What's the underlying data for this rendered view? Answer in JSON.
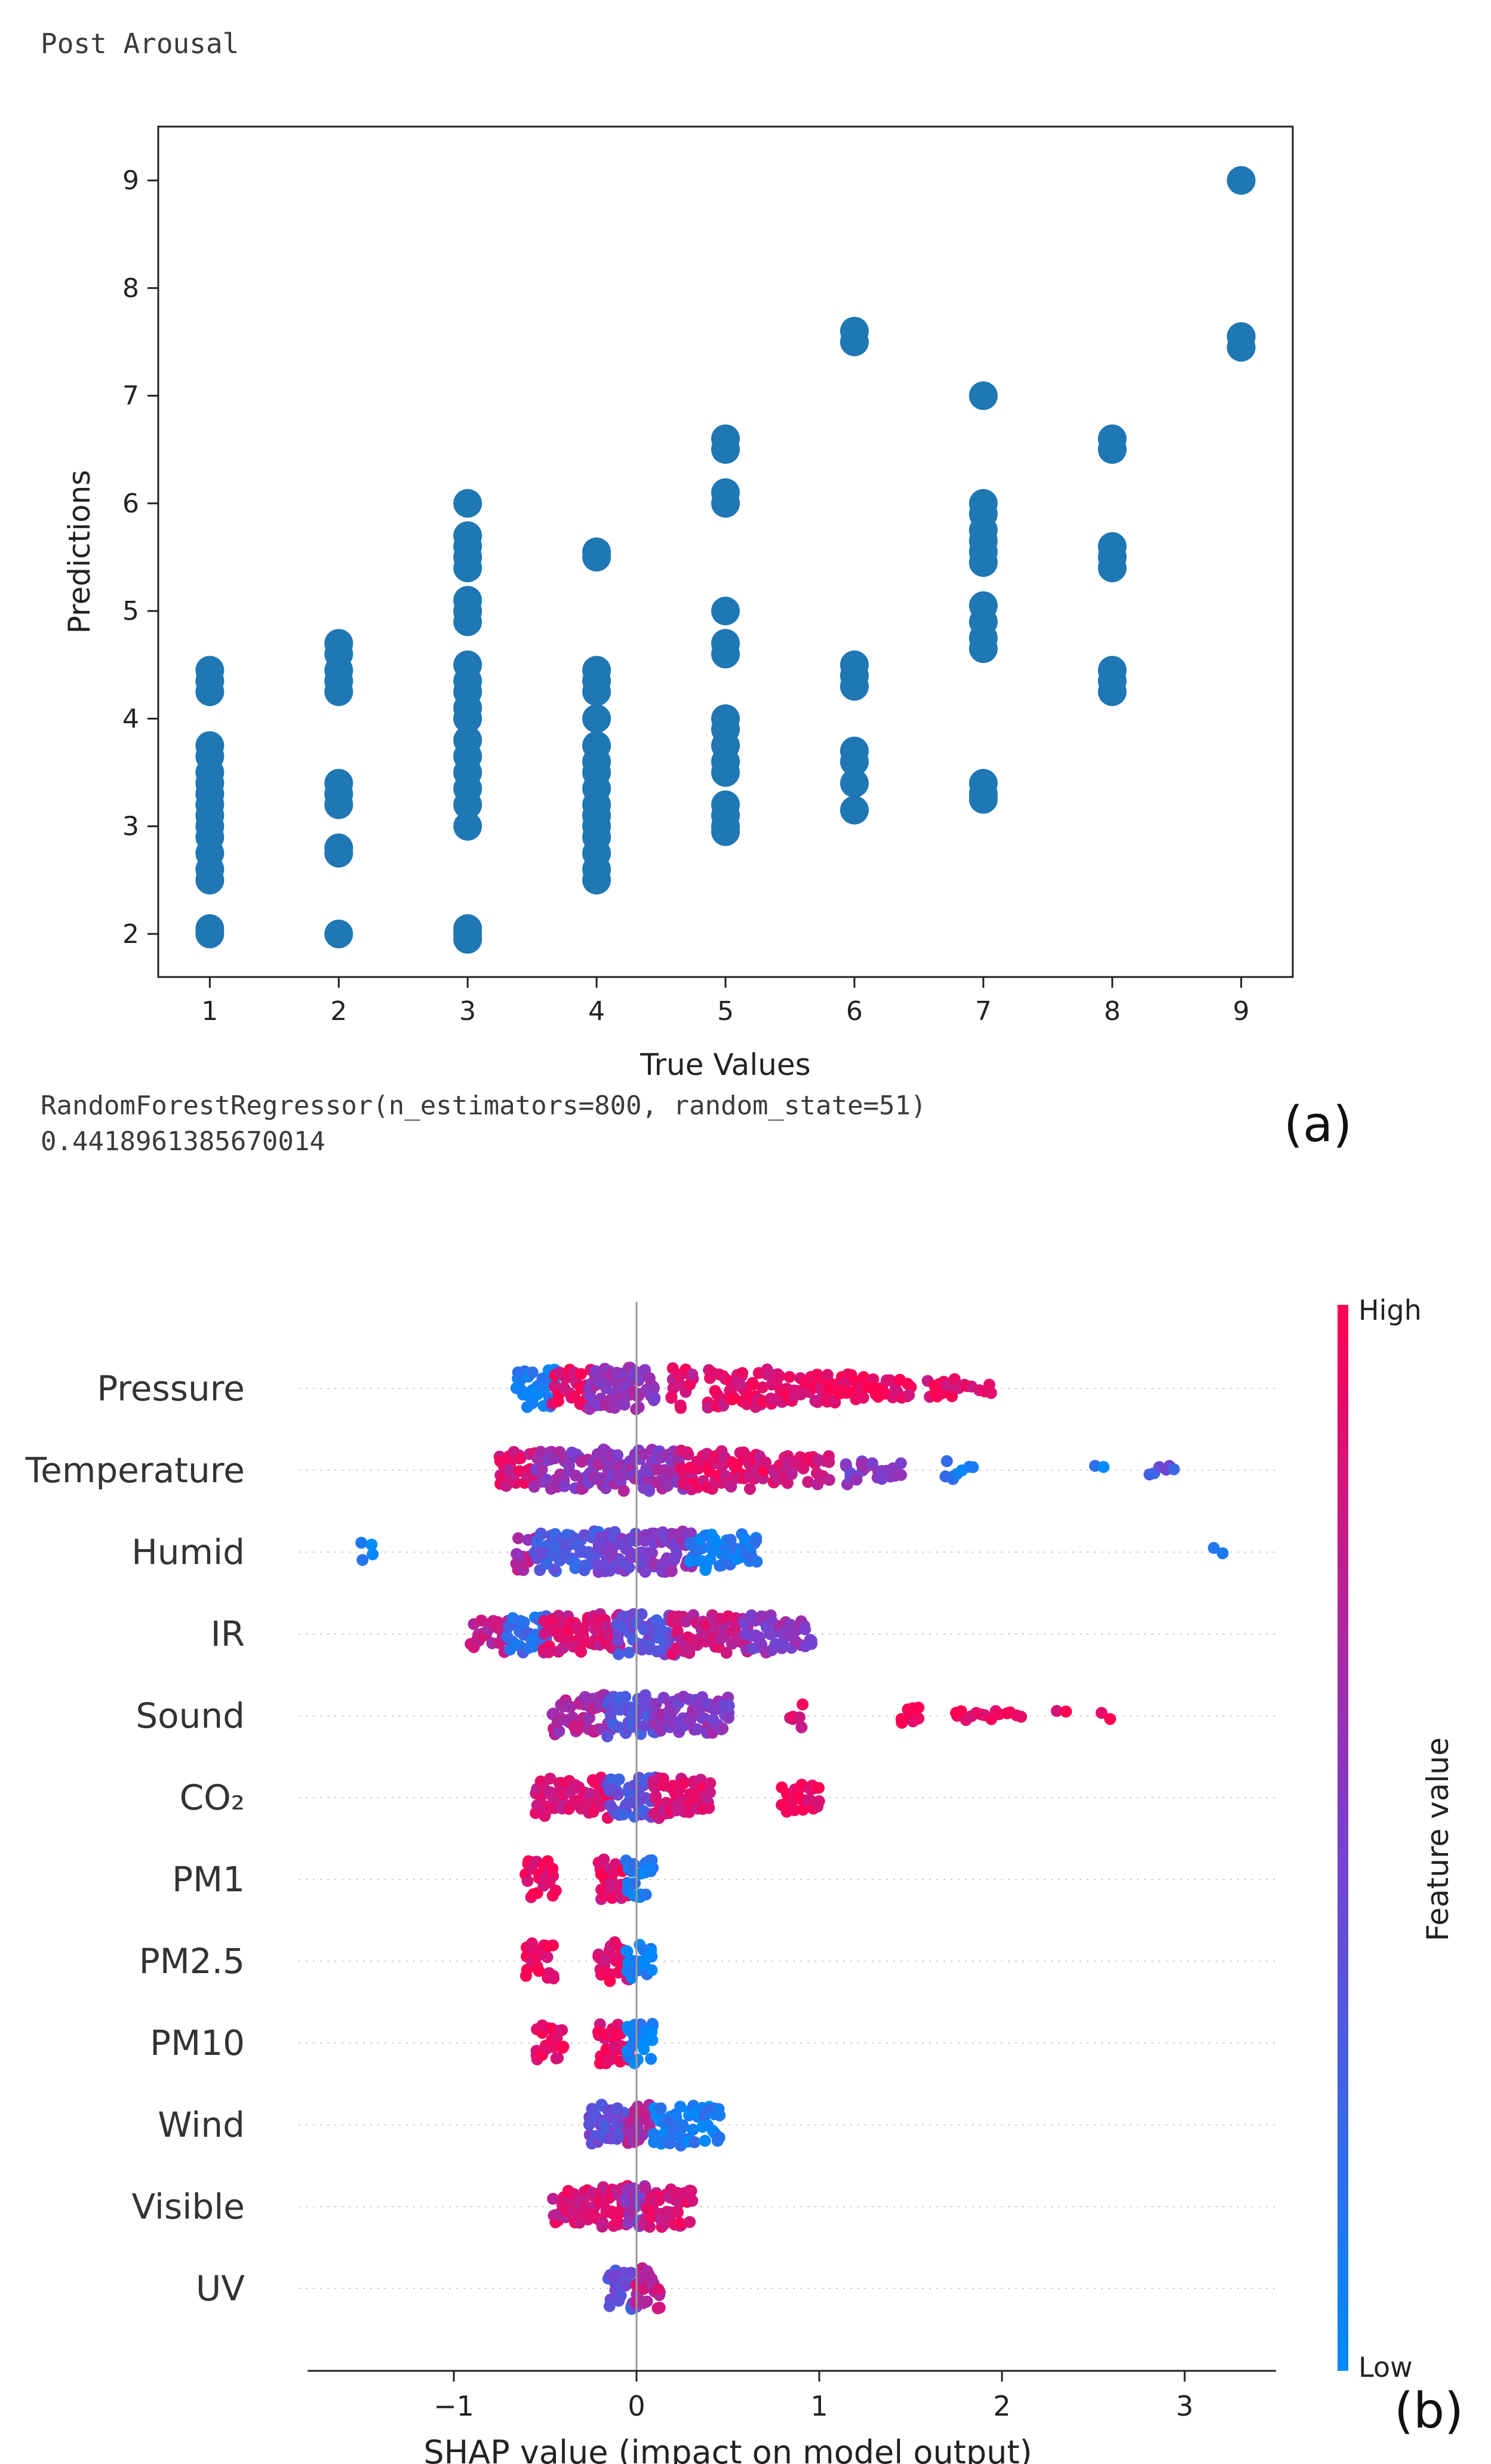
{
  "header": {
    "label": "Post Arousal"
  },
  "output": {
    "model": "RandomForestRegressor(n_estimators=800, random_state=51)",
    "score": "0.4418961385670014"
  },
  "panels": {
    "a": "(a)",
    "b": "(b)"
  },
  "colors": {
    "scatter": "#1f77b4",
    "shap_low": "#008bfb",
    "shap_high": "#ff0052"
  },
  "chart_data": [
    {
      "type": "scatter",
      "title": "",
      "xlabel": "True Values",
      "ylabel": "Predictions",
      "xlim": [
        0.6,
        9.4
      ],
      "ylim": [
        1.6,
        9.5
      ],
      "xticks": [
        1,
        2,
        3,
        4,
        5,
        6,
        7,
        8,
        9
      ],
      "yticks": [
        2,
        3,
        4,
        5,
        6,
        7,
        8,
        9
      ],
      "grid": false,
      "series": [
        {
          "points": [
            [
              1,
              2.0
            ],
            [
              1,
              2.05
            ],
            [
              1,
              2.5
            ],
            [
              1,
              2.6
            ],
            [
              1,
              2.75
            ],
            [
              1,
              2.9
            ],
            [
              1,
              3.0
            ],
            [
              1,
              3.1
            ],
            [
              1,
              3.2
            ],
            [
              1,
              3.3
            ],
            [
              1,
              3.4
            ],
            [
              1,
              3.5
            ],
            [
              1,
              3.65
            ],
            [
              1,
              3.75
            ],
            [
              1,
              4.25
            ],
            [
              1,
              4.35
            ],
            [
              1,
              4.45
            ],
            [
              2,
              2.0
            ],
            [
              2,
              2.75
            ],
            [
              2,
              2.8
            ],
            [
              2,
              3.2
            ],
            [
              2,
              3.3
            ],
            [
              2,
              3.4
            ],
            [
              2,
              4.25
            ],
            [
              2,
              4.35
            ],
            [
              2,
              4.45
            ],
            [
              2,
              4.6
            ],
            [
              2,
              4.7
            ],
            [
              3,
              1.95
            ],
            [
              3,
              2.0
            ],
            [
              3,
              2.05
            ],
            [
              3,
              3.0
            ],
            [
              3,
              3.2
            ],
            [
              3,
              3.35
            ],
            [
              3,
              3.5
            ],
            [
              3,
              3.65
            ],
            [
              3,
              3.8
            ],
            [
              3,
              4.0
            ],
            [
              3,
              4.1
            ],
            [
              3,
              4.25
            ],
            [
              3,
              4.35
            ],
            [
              3,
              4.5
            ],
            [
              3,
              4.9
            ],
            [
              3,
              5.0
            ],
            [
              3,
              5.1
            ],
            [
              3,
              5.4
            ],
            [
              3,
              5.5
            ],
            [
              3,
              5.6
            ],
            [
              3,
              5.7
            ],
            [
              3,
              6.0
            ],
            [
              4,
              2.5
            ],
            [
              4,
              2.6
            ],
            [
              4,
              2.75
            ],
            [
              4,
              2.9
            ],
            [
              4,
              3.0
            ],
            [
              4,
              3.1
            ],
            [
              4,
              3.2
            ],
            [
              4,
              3.35
            ],
            [
              4,
              3.5
            ],
            [
              4,
              3.6
            ],
            [
              4,
              3.75
            ],
            [
              4,
              4.0
            ],
            [
              4,
              4.25
            ],
            [
              4,
              4.35
            ],
            [
              4,
              4.45
            ],
            [
              4,
              5.5
            ],
            [
              4,
              5.55
            ],
            [
              5,
              2.95
            ],
            [
              5,
              3.0
            ],
            [
              5,
              3.1
            ],
            [
              5,
              3.2
            ],
            [
              5,
              3.5
            ],
            [
              5,
              3.6
            ],
            [
              5,
              3.75
            ],
            [
              5,
              3.9
            ],
            [
              5,
              4.0
            ],
            [
              5,
              4.6
            ],
            [
              5,
              4.7
            ],
            [
              5,
              5.0
            ],
            [
              5,
              6.0
            ],
            [
              5,
              6.1
            ],
            [
              5,
              6.5
            ],
            [
              5,
              6.6
            ],
            [
              6,
              3.15
            ],
            [
              6,
              3.4
            ],
            [
              6,
              3.6
            ],
            [
              6,
              3.7
            ],
            [
              6,
              4.3
            ],
            [
              6,
              4.4
            ],
            [
              6,
              4.5
            ],
            [
              6,
              7.5
            ],
            [
              6,
              7.6
            ],
            [
              7,
              3.25
            ],
            [
              7,
              3.3
            ],
            [
              7,
              3.4
            ],
            [
              7,
              4.65
            ],
            [
              7,
              4.75
            ],
            [
              7,
              4.9
            ],
            [
              7,
              5.05
            ],
            [
              7,
              5.45
            ],
            [
              7,
              5.55
            ],
            [
              7,
              5.65
            ],
            [
              7,
              5.75
            ],
            [
              7,
              5.9
            ],
            [
              7,
              6.0
            ],
            [
              7,
              7.0
            ],
            [
              8,
              4.25
            ],
            [
              8,
              4.35
            ],
            [
              8,
              4.45
            ],
            [
              8,
              5.4
            ],
            [
              8,
              5.5
            ],
            [
              8,
              5.6
            ],
            [
              8,
              6.5
            ],
            [
              8,
              6.6
            ],
            [
              9,
              7.45
            ],
            [
              9,
              7.55
            ],
            [
              9,
              9.0
            ]
          ]
        }
      ]
    },
    {
      "type": "scatter",
      "title": "",
      "xlabel": "SHAP value (impact on model output)",
      "ylabel": "",
      "xlim": [
        -1.8,
        3.5
      ],
      "xticks": [
        -1,
        0,
        1,
        2,
        3
      ],
      "grid": false,
      "features": [
        "Pressure",
        "Temperature",
        "Humid",
        "IR",
        "Sound",
        "CO₂",
        "PM1",
        "PM2.5",
        "PM10",
        "Wind",
        "Visible",
        "UV"
      ],
      "colorbar": {
        "title": "Feature value",
        "high": "High",
        "low": "Low"
      },
      "summary": [
        {
          "feature": "Pressure",
          "min": -0.65,
          "max": 1.95,
          "clusters": [
            [
              -0.65,
              -0.45,
              0.08
            ],
            [
              -0.45,
              -0.25,
              0.92
            ],
            [
              -0.25,
              0.1,
              0.6
            ],
            [
              0.2,
              0.3,
              0.85
            ],
            [
              0.4,
              1.05,
              0.9
            ],
            [
              1.05,
              1.5,
              0.95
            ],
            [
              1.6,
              1.95,
              0.9
            ]
          ]
        },
        {
          "feature": "Temperature",
          "min": -0.75,
          "max": 2.95,
          "clusters": [
            [
              -0.75,
              -0.55,
              0.85
            ],
            [
              -0.55,
              -0.15,
              0.6
            ],
            [
              -0.15,
              0.25,
              0.6
            ],
            [
              0.25,
              0.7,
              0.88
            ],
            [
              0.75,
              1.05,
              0.85
            ],
            [
              1.15,
              1.45,
              0.55
            ],
            [
              1.7,
              1.85,
              0.1
            ],
            [
              2.5,
              2.55,
              0.1
            ],
            [
              2.8,
              2.95,
              0.35
            ]
          ]
        },
        {
          "feature": "Humid",
          "min": -1.5,
          "max": 3.2,
          "clusters": [
            [
              -1.5,
              -1.45,
              0.05
            ],
            [
              -0.65,
              -0.55,
              0.7
            ],
            [
              -0.55,
              -0.2,
              0.3
            ],
            [
              -0.2,
              0.05,
              0.45
            ],
            [
              0.05,
              0.3,
              0.55
            ],
            [
              0.3,
              0.65,
              0.1
            ],
            [
              3.15,
              3.2,
              0.05
            ]
          ]
        },
        {
          "feature": "IR",
          "min": -0.9,
          "max": 0.95,
          "clusters": [
            [
              -0.9,
              -0.7,
              0.75
            ],
            [
              -0.7,
              -0.5,
              0.2
            ],
            [
              -0.5,
              -0.1,
              0.85
            ],
            [
              -0.1,
              0.2,
              0.4
            ],
            [
              0.2,
              0.6,
              0.8
            ],
            [
              0.6,
              0.95,
              0.55
            ]
          ]
        },
        {
          "feature": "Sound",
          "min": -0.45,
          "max": 2.6,
          "clusters": [
            [
              -0.45,
              -0.15,
              0.7
            ],
            [
              -0.15,
              0.1,
              0.35
            ],
            [
              0.1,
              0.5,
              0.55
            ],
            [
              0.85,
              0.9,
              0.9
            ],
            [
              1.45,
              1.55,
              0.95
            ],
            [
              1.75,
              2.1,
              0.95
            ],
            [
              2.3,
              2.35,
              0.95
            ],
            [
              2.55,
              2.6,
              0.95
            ]
          ]
        },
        {
          "feature": "CO₂",
          "min": -0.55,
          "max": 1.0,
          "clusters": [
            [
              -0.55,
              -0.15,
              0.85
            ],
            [
              -0.15,
              0.1,
              0.35
            ],
            [
              0.1,
              0.4,
              0.85
            ],
            [
              0.8,
              1.0,
              0.95
            ]
          ]
        },
        {
          "feature": "PM1",
          "min": -0.6,
          "max": 0.08,
          "clusters": [
            [
              -0.6,
              -0.45,
              0.95
            ],
            [
              -0.2,
              -0.05,
              0.9
            ],
            [
              -0.05,
              0.08,
              0.08
            ]
          ]
        },
        {
          "feature": "PM2.5",
          "min": -0.6,
          "max": 0.08,
          "clusters": [
            [
              -0.6,
              -0.45,
              0.95
            ],
            [
              -0.2,
              -0.05,
              0.9
            ],
            [
              -0.05,
              0.08,
              0.08
            ]
          ]
        },
        {
          "feature": "PM10",
          "min": -0.55,
          "max": 0.08,
          "clusters": [
            [
              -0.55,
              -0.4,
              0.95
            ],
            [
              -0.2,
              -0.05,
              0.9
            ],
            [
              -0.05,
              0.08,
              0.08
            ]
          ]
        },
        {
          "feature": "Wind",
          "min": -0.25,
          "max": 0.45,
          "clusters": [
            [
              -0.25,
              -0.05,
              0.4
            ],
            [
              -0.05,
              0.1,
              0.7
            ],
            [
              0.1,
              0.45,
              0.1
            ]
          ]
        },
        {
          "feature": "Visible",
          "min": -0.45,
          "max": 0.3,
          "clusters": [
            [
              -0.45,
              -0.05,
              0.85
            ],
            [
              -0.05,
              0.05,
              0.55
            ],
            [
              0.05,
              0.3,
              0.85
            ]
          ]
        },
        {
          "feature": "UV",
          "min": -0.15,
          "max": 0.12,
          "clusters": [
            [
              -0.15,
              0.0,
              0.4
            ],
            [
              0.0,
              0.12,
              0.75
            ]
          ]
        }
      ]
    }
  ]
}
